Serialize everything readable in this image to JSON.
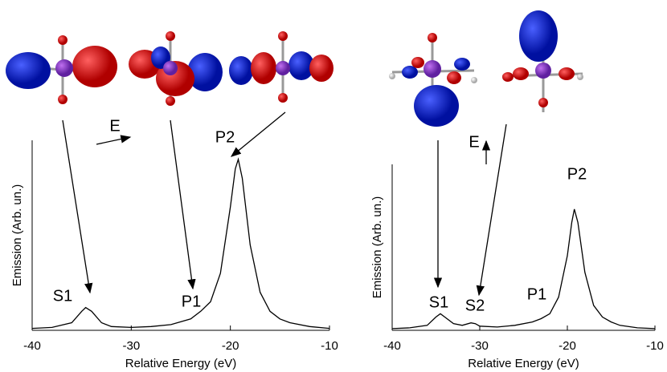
{
  "chart_data": [
    {
      "type": "line",
      "color": "#000000",
      "x": [
        -40,
        -38,
        -36,
        -35,
        -34.6,
        -34,
        -33,
        -32,
        -30,
        -28,
        -26,
        -24,
        -23,
        -22,
        -21,
        -20,
        -19.5,
        -19.2,
        -18.8,
        -18,
        -17,
        -16,
        -15,
        -14,
        -12,
        -10
      ],
      "values": [
        0.01,
        0.015,
        0.04,
        0.1,
        0.12,
        0.1,
        0.04,
        0.02,
        0.015,
        0.02,
        0.03,
        0.06,
        0.1,
        0.15,
        0.3,
        0.65,
        0.85,
        0.9,
        0.8,
        0.45,
        0.2,
        0.1,
        0.06,
        0.04,
        0.02,
        0.01
      ],
      "xlim": [
        -40,
        -10
      ],
      "xticks": [
        -40,
        -30,
        -20,
        -10
      ],
      "ylim": [
        0,
        1
      ],
      "xlabel": "Relative Energy (eV)",
      "ylabel": "Emission (Arb. un.)",
      "annotations": [
        "S1",
        "P1",
        "P2",
        "E"
      ]
    },
    {
      "type": "line",
      "color": "#000000",
      "x": [
        -40,
        -38,
        -36,
        -35,
        -34.5,
        -34,
        -33,
        -32,
        -31,
        -30.5,
        -30,
        -28,
        -26,
        -24,
        -23,
        -22,
        -21,
        -20,
        -19.5,
        -19.2,
        -18.8,
        -18,
        -17,
        -16,
        -15,
        -14,
        -12,
        -10
      ],
      "values": [
        0.01,
        0.015,
        0.03,
        0.08,
        0.1,
        0.08,
        0.04,
        0.03,
        0.045,
        0.04,
        0.025,
        0.02,
        0.03,
        0.05,
        0.07,
        0.1,
        0.2,
        0.45,
        0.65,
        0.73,
        0.65,
        0.35,
        0.15,
        0.08,
        0.05,
        0.03,
        0.015,
        0.01
      ],
      "xlim": [
        -40,
        -10
      ],
      "xticks": [
        -40,
        -30,
        -20,
        -10
      ],
      "ylim": [
        0,
        1
      ],
      "xlabel": "Relative Energy (eV)",
      "ylabel": "Emission (Arb. un.)",
      "annotations": [
        "S1",
        "S2",
        "P1",
        "P2",
        "E"
      ]
    }
  ]
}
